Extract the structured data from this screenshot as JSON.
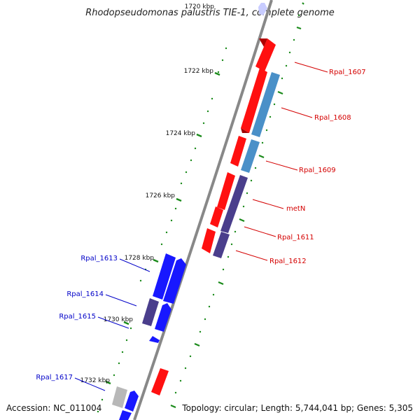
{
  "title": "Rhodopseudomonas palustris TIE-1, complete genome",
  "accession": "Accession: NC_011004",
  "topology": "Topology: circular; Length: 5,744,041 bp; Genes: 5,305",
  "colors": {
    "forward": "#ff1010",
    "reverse_blue": "#1818ff",
    "steel": "#4a90c8",
    "purple": "#4a3e8c",
    "gray": "#b8b8b8",
    "tick": "#1a8a1a",
    "backbone": "#888888"
  },
  "ruler_labels": [
    {
      "text": "1720 kbp",
      "kbp": 1720
    },
    {
      "text": "1722 kbp",
      "kbp": 1722
    },
    {
      "text": "1724 kbp",
      "kbp": 1724
    },
    {
      "text": "1726 kbp",
      "kbp": 1726
    },
    {
      "text": "1728 kbp",
      "kbp": 1728
    },
    {
      "text": "1730 kbp",
      "kbp": 1730
    },
    {
      "text": "1732 kbp",
      "kbp": 1732
    }
  ],
  "gene_labels": [
    {
      "name": "Rpal_1607",
      "strand": "forward"
    },
    {
      "name": "Rpal_1608",
      "strand": "forward"
    },
    {
      "name": "Rpal_1609",
      "strand": "forward"
    },
    {
      "name": "metN",
      "strand": "forward"
    },
    {
      "name": "Rpal_1611",
      "strand": "forward"
    },
    {
      "name": "Rpal_1612",
      "strand": "forward"
    },
    {
      "name": "Rpal_1613",
      "strand": "reverse"
    },
    {
      "name": "Rpal_1614",
      "strand": "reverse"
    },
    {
      "name": "Rpal_1615",
      "strand": "reverse"
    },
    {
      "name": "Rpal_1617",
      "strand": "reverse"
    }
  ]
}
